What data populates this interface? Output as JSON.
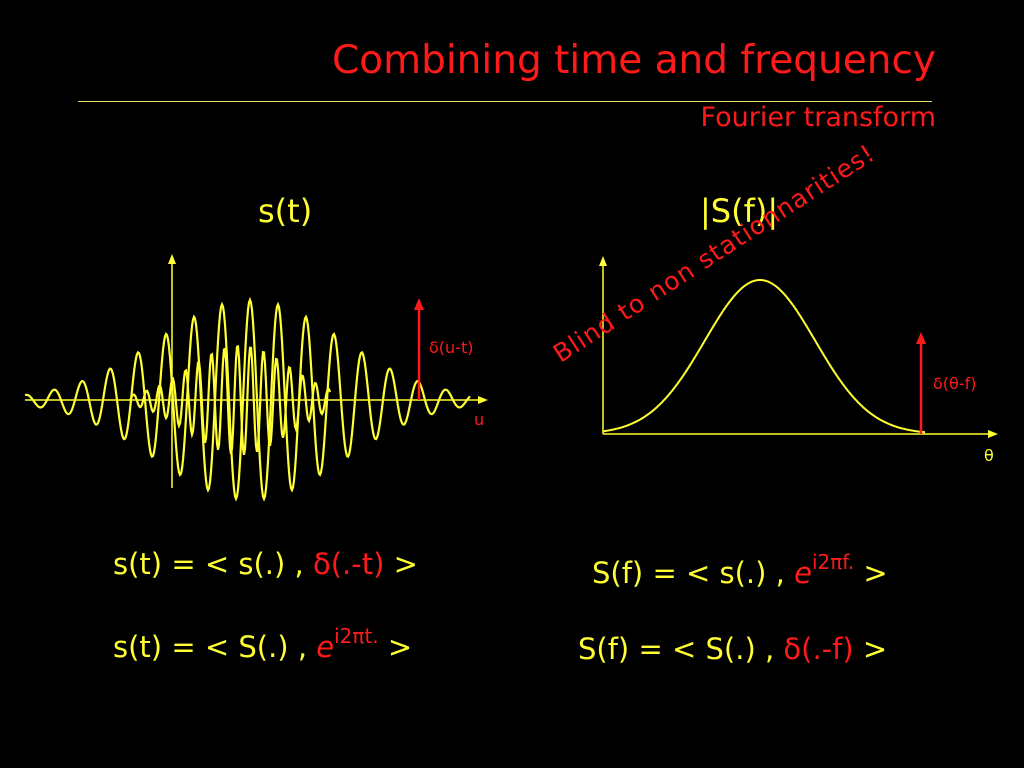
{
  "slide": {
    "title": "Combining time and frequency",
    "subtitle": "Fourier transform"
  },
  "left_panel": {
    "heading": "s(t)",
    "axis_label": "u",
    "impulse_label": "δ(u-t)",
    "eq1": {
      "lhs": "s(t) = < s(.) , ",
      "red": "δ(.-t)",
      "rhs": " >"
    },
    "eq2": {
      "lhs": "s(t) = < S(.) , ",
      "base": "e",
      "sup": "i2πt.",
      "rhs": " >"
    }
  },
  "right_panel": {
    "heading": "|S(f)|",
    "axis_label": "θ",
    "impulse_label": "δ(θ-f)",
    "annotation": "Blind to non stationnarities!",
    "eq1": {
      "lhs": "S(f) = < s(.) , ",
      "base": "e",
      "sup": "i2πf.",
      "rhs": " >"
    },
    "eq2": {
      "lhs": "S(f) = < S(.) , ",
      "red": "δ(.-f)",
      "rhs": " >"
    }
  },
  "colors": {
    "background": "#000000",
    "title": "#ff1a1a",
    "curve": "#ffff33",
    "impulse": "#ff1a1a"
  }
}
